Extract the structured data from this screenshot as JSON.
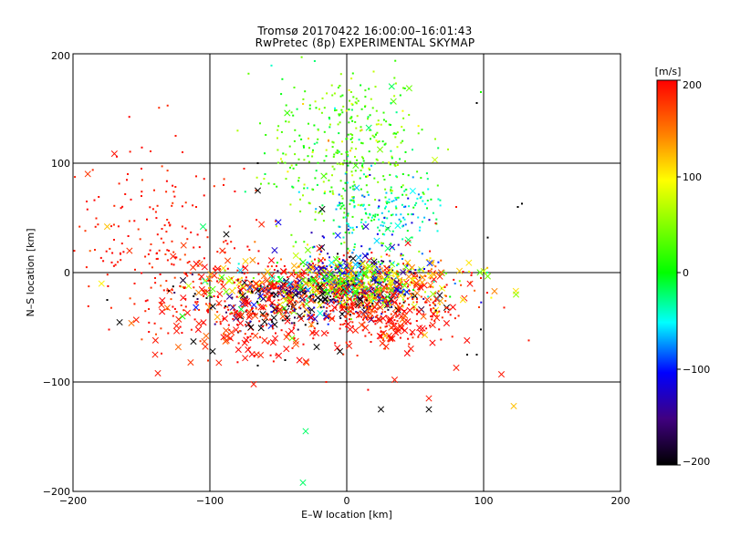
{
  "chart_data": {
    "type": "scatter",
    "title": "Tromsø 20170422 16:00:00–16:01:43",
    "subtitle": "RwPretec (8p) EXPERIMENTAL SKYMAP",
    "xlabel": "E–W location [km]",
    "ylabel": "N–S location [km]",
    "xlim": [
      -200,
      200
    ],
    "ylim": [
      -200,
      200
    ],
    "x_ticks": [
      "−200",
      "−100",
      "0",
      "100",
      "200"
    ],
    "y_ticks": [
      "−200",
      "−100",
      "0",
      "100",
      "200"
    ],
    "grid": true,
    "colorbar": {
      "label": "[m/s]",
      "range": [
        -200,
        200
      ],
      "ticks": [
        "200",
        "100",
        "0",
        "−100",
        "−200"
      ],
      "colors": [
        "#ff0000",
        "#ff8000",
        "#ffff00",
        "#00ff00",
        "#00ffff",
        "#0000ff",
        "#400080",
        "#000000"
      ]
    },
    "markers": {
      "small": "dot",
      "large": "x"
    },
    "series": [
      {
        "values": [
          {
            "x": -175,
            "y": 42,
            "v": 120,
            "m": "x"
          },
          {
            "x": -105,
            "y": 42,
            "v": -20,
            "m": "x"
          },
          {
            "x": -65,
            "y": 75,
            "v": -200,
            "m": "x"
          },
          {
            "x": -18,
            "y": 58,
            "v": -200,
            "m": "x"
          },
          {
            "x": -50,
            "y": 46,
            "v": -110,
            "m": "x"
          },
          {
            "x": -88,
            "y": 35,
            "v": -200,
            "m": "x"
          },
          {
            "x": -120,
            "y": -40,
            "v": 0,
            "m": "x"
          },
          {
            "x": -140,
            "y": -75,
            "v": 190,
            "m": "x"
          },
          {
            "x": -138,
            "y": -92,
            "v": 190,
            "m": "x"
          },
          {
            "x": -98,
            "y": -72,
            "v": -200,
            "m": "x"
          },
          {
            "x": -112,
            "y": -63,
            "v": -200,
            "m": "x"
          },
          {
            "x": -68,
            "y": -102,
            "v": 190,
            "m": "x"
          },
          {
            "x": -30,
            "y": -145,
            "v": -20,
            "m": "x"
          },
          {
            "x": -32,
            "y": -192,
            "v": -20,
            "m": "x"
          },
          {
            "x": 25,
            "y": -125,
            "v": -200,
            "m": "x"
          },
          {
            "x": 60,
            "y": -125,
            "v": -200,
            "m": "x"
          },
          {
            "x": 60,
            "y": -115,
            "v": 190,
            "m": "x"
          },
          {
            "x": 35,
            "y": -98,
            "v": 190,
            "m": "x"
          },
          {
            "x": -5,
            "y": -72,
            "v": -200,
            "m": "x"
          },
          {
            "x": -22,
            "y": -68,
            "v": -200,
            "m": "x"
          },
          {
            "x": 80,
            "y": -87,
            "v": 190,
            "m": "x"
          },
          {
            "x": 113,
            "y": -93,
            "v": 190,
            "m": "x"
          },
          {
            "x": 122,
            "y": -122,
            "v": 120,
            "m": "x"
          },
          {
            "x": 57,
            "y": -57,
            "v": 120,
            "m": "x"
          },
          {
            "x": 28,
            "y": -58,
            "v": 120,
            "m": "x"
          },
          {
            "x": -40,
            "y": -60,
            "v": 40,
            "m": "x"
          },
          {
            "x": -85,
            "y": -60,
            "v": 190,
            "m": "x"
          },
          {
            "x": -60,
            "y": -62,
            "v": 190,
            "m": "x"
          },
          {
            "x": -70,
            "y": -50,
            "v": -200,
            "m": "x"
          },
          {
            "x": 30,
            "y": 22,
            "v": -20,
            "m": "x"
          },
          {
            "x": 14,
            "y": 42,
            "v": -120,
            "m": "x"
          },
          {
            "x": -20,
            "y": 22,
            "v": 190,
            "m": "x"
          },
          {
            "x": 30,
            "y": 40,
            "v": -20,
            "m": "x"
          },
          {
            "x": 45,
            "y": 30,
            "v": -20,
            "m": "x"
          },
          {
            "x": 20,
            "y": 10,
            "v": -200,
            "m": "x"
          },
          {
            "x": -100,
            "y": -20,
            "v": 40,
            "m": "x"
          },
          {
            "x": -60,
            "y": -45,
            "v": -200,
            "m": "x"
          },
          {
            "x": -52,
            "y": -20,
            "v": -200,
            "m": "x"
          },
          {
            "x": -45,
            "y": -12,
            "v": 190,
            "m": "x"
          },
          {
            "x": 10,
            "y": -25,
            "v": -200,
            "m": "x"
          },
          {
            "x": 0,
            "y": -15,
            "v": 190,
            "m": "x"
          },
          {
            "x": 5,
            "y": -30,
            "v": 190,
            "m": "x"
          },
          {
            "x": 40,
            "y": -40,
            "v": 190,
            "m": "x"
          },
          {
            "x": -15,
            "y": -40,
            "v": -110,
            "m": "x"
          },
          {
            "x": -25,
            "y": -55,
            "v": 190,
            "m": "x"
          },
          {
            "x": -120,
            "y": 110,
            "v": 190,
            "m": "dot"
          },
          {
            "x": -125,
            "y": 125,
            "v": 190,
            "m": "dot"
          },
          {
            "x": -160,
            "y": 90,
            "v": 190,
            "m": "dot"
          },
          {
            "x": -150,
            "y": 70,
            "v": 190,
            "m": "dot"
          },
          {
            "x": -190,
            "y": 65,
            "v": 190,
            "m": "dot"
          },
          {
            "x": -135,
            "y": 40,
            "v": 190,
            "m": "dot"
          },
          {
            "x": -110,
            "y": 60,
            "v": 190,
            "m": "dot"
          },
          {
            "x": -170,
            "y": 30,
            "v": 190,
            "m": "dot"
          },
          {
            "x": -130,
            "y": 20,
            "v": 190,
            "m": "dot"
          },
          {
            "x": -175,
            "y": -25,
            "v": -200,
            "m": "dot"
          },
          {
            "x": -140,
            "y": -5,
            "v": 190,
            "m": "dot"
          },
          {
            "x": -115,
            "y": 10,
            "v": 190,
            "m": "dot"
          },
          {
            "x": -155,
            "y": -10,
            "v": 190,
            "m": "dot"
          },
          {
            "x": -15,
            "y": -100,
            "v": 190,
            "m": "dot"
          },
          {
            "x": -45,
            "y": -80,
            "v": -200,
            "m": "dot"
          },
          {
            "x": -65,
            "y": -85,
            "v": -200,
            "m": "dot"
          },
          {
            "x": 95,
            "y": -75,
            "v": -200,
            "m": "dot"
          },
          {
            "x": 88,
            "y": -75,
            "v": -200,
            "m": "dot"
          },
          {
            "x": 133,
            "y": -62,
            "v": 190,
            "m": "dot"
          },
          {
            "x": 115,
            "y": -32,
            "v": 190,
            "m": "dot"
          },
          {
            "x": 98,
            "y": -52,
            "v": -200,
            "m": "dot"
          },
          {
            "x": 95,
            "y": 155,
            "v": -200,
            "m": "dot"
          },
          {
            "x": 98,
            "y": 165,
            "v": 10,
            "m": "dot"
          },
          {
            "x": 103,
            "y": 32,
            "v": -200,
            "m": "dot"
          },
          {
            "x": 125,
            "y": 60,
            "v": -200,
            "m": "dot"
          },
          {
            "x": 128,
            "y": 63,
            "v": -200,
            "m": "dot"
          },
          {
            "x": 98,
            "y": -5,
            "v": 190,
            "m": "dot"
          },
          {
            "x": 65,
            "y": 45,
            "v": 190,
            "m": "dot"
          },
          {
            "x": 80,
            "y": 60,
            "v": 190,
            "m": "dot"
          },
          {
            "x": -65,
            "y": 100,
            "v": -200,
            "m": "dot"
          },
          {
            "x": -90,
            "y": 80,
            "v": 190,
            "m": "dot"
          },
          {
            "x": -75,
            "y": 95,
            "v": 190,
            "m": "dot"
          }
        ]
      }
    ]
  }
}
